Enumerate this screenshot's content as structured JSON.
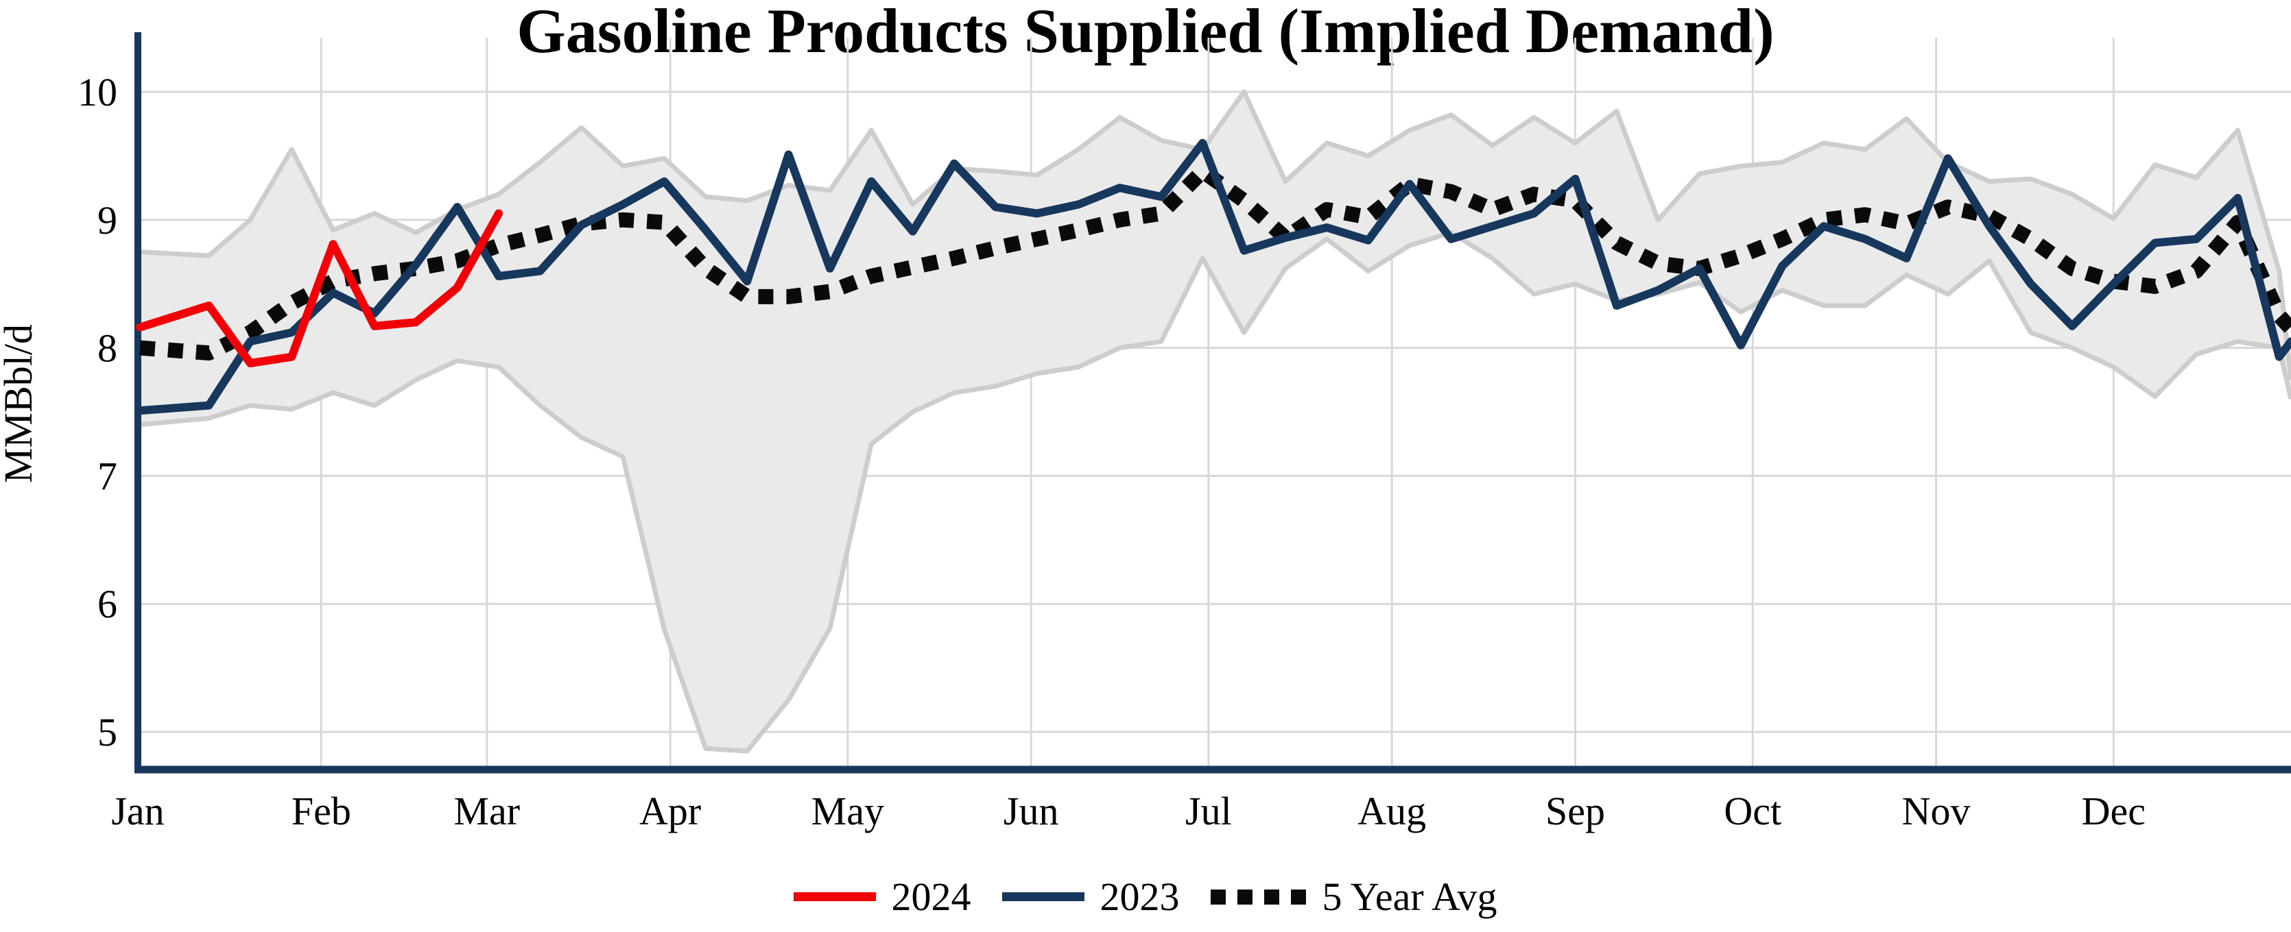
{
  "chart_data": {
    "type": "line",
    "title": "Gasoline Products Supplied (Implied Demand)",
    "ylabel": "MMBbl/d",
    "xlabel": "",
    "x_axis": "weekly data, Jan through Dec (week-ending dates)",
    "months": [
      "Jan",
      "Feb",
      "Mar",
      "Apr",
      "May",
      "Jun",
      "Jul",
      "Aug",
      "Sep",
      "Oct",
      "Nov",
      "Dec"
    ],
    "y_ticks": [
      10,
      9,
      8,
      7,
      6,
      5
    ],
    "ylim": [
      4.6,
      10.35
    ],
    "grid": true,
    "legend_position": "bottom-center",
    "series": [
      {
        "name": "2024",
        "color": "#f2000a",
        "style": "solid",
        "values": [
          8.16,
          8.33,
          7.88,
          7.93,
          8.81,
          8.17,
          8.2,
          8.47,
          9.05
        ]
      },
      {
        "name": "2023",
        "color": "#17375d",
        "style": "solid",
        "values": [
          7.51,
          7.55,
          8.05,
          8.12,
          8.43,
          8.27,
          8.65,
          9.1,
          8.56,
          8.6,
          8.96,
          9.12,
          9.3,
          8.92,
          8.52,
          9.51,
          8.62,
          9.3,
          8.91,
          9.44,
          9.1,
          9.05,
          9.12,
          9.25,
          9.18,
          9.6,
          8.76,
          8.86,
          8.94,
          8.84,
          9.28,
          8.85,
          8.95,
          9.05,
          9.32,
          8.33,
          8.45,
          8.62,
          8.02,
          8.64,
          8.95,
          8.85,
          8.7,
          9.48,
          8.95,
          8.5,
          8.17,
          8.5,
          8.82,
          8.85,
          9.17,
          7.93
        ],
        "edge_value": 8.05
      },
      {
        "name": "5 Year Avg",
        "color": "#0a0a0a",
        "style": "dotted",
        "values": [
          8.0,
          7.96,
          8.12,
          8.35,
          8.52,
          8.58,
          8.62,
          8.68,
          8.8,
          8.88,
          8.97,
          9.0,
          8.98,
          8.62,
          8.4,
          8.4,
          8.44,
          8.56,
          8.63,
          8.7,
          8.78,
          8.85,
          8.92,
          9.0,
          9.05,
          9.38,
          9.15,
          8.86,
          9.08,
          9.02,
          9.28,
          9.22,
          9.08,
          9.2,
          9.15,
          8.82,
          8.66,
          8.62,
          8.72,
          8.85,
          9.0,
          9.04,
          8.97,
          9.1,
          9.03,
          8.85,
          8.62,
          8.52,
          8.48,
          8.6,
          8.98,
          8.25
        ],
        "edge_value": 8.15
      }
    ],
    "band": {
      "name": "5-year min-max range",
      "fill": "#eaeaea",
      "edge_color": "#cdcdcd",
      "top": [
        8.75,
        8.72,
        9.0,
        9.55,
        8.92,
        9.05,
        8.9,
        9.08,
        9.2,
        9.45,
        9.72,
        9.42,
        9.48,
        9.18,
        9.15,
        9.27,
        9.23,
        9.7,
        9.12,
        9.4,
        9.38,
        9.35,
        9.55,
        9.8,
        9.62,
        9.55,
        10.0,
        9.3,
        9.6,
        9.5,
        9.7,
        9.82,
        9.58,
        9.8,
        9.6,
        9.85,
        9.0,
        9.36,
        9.42,
        9.45,
        9.6,
        9.55,
        9.79,
        9.45,
        9.3,
        9.32,
        9.2,
        9.01,
        9.43,
        9.33,
        9.7,
        8.6
      ],
      "top_edge_value": 7.75,
      "bottom": [
        7.4,
        7.45,
        7.55,
        7.52,
        7.65,
        7.55,
        7.75,
        7.9,
        7.85,
        7.55,
        7.3,
        7.15,
        5.8,
        4.87,
        4.85,
        5.25,
        5.81,
        7.25,
        7.5,
        7.65,
        7.7,
        7.8,
        7.85,
        8.0,
        8.05,
        8.7,
        8.12,
        8.62,
        8.85,
        8.6,
        8.8,
        8.9,
        8.7,
        8.42,
        8.5,
        8.37,
        8.42,
        8.51,
        8.28,
        8.45,
        8.33,
        8.33,
        8.57,
        8.42,
        8.68,
        8.12,
        8.0,
        7.85,
        7.62,
        7.95,
        8.05,
        8.0
      ],
      "bottom_edge_value": 7.6
    }
  },
  "legend": {
    "items": [
      {
        "label": "2024",
        "color": "#f2000a",
        "style": "solid"
      },
      {
        "label": "2023",
        "color": "#17375d",
        "style": "solid"
      },
      {
        "label": "5 Year Avg",
        "color": "#0a0a0a",
        "style": "dotted"
      }
    ]
  },
  "colors": {
    "axis": "#17375d",
    "grid": "#d8d8d8",
    "red": "#f2000a",
    "navy": "#17375d",
    "dotted": "#0a0a0a",
    "band_fill": "#eaeaea",
    "band_edge": "#cdcdcd"
  }
}
